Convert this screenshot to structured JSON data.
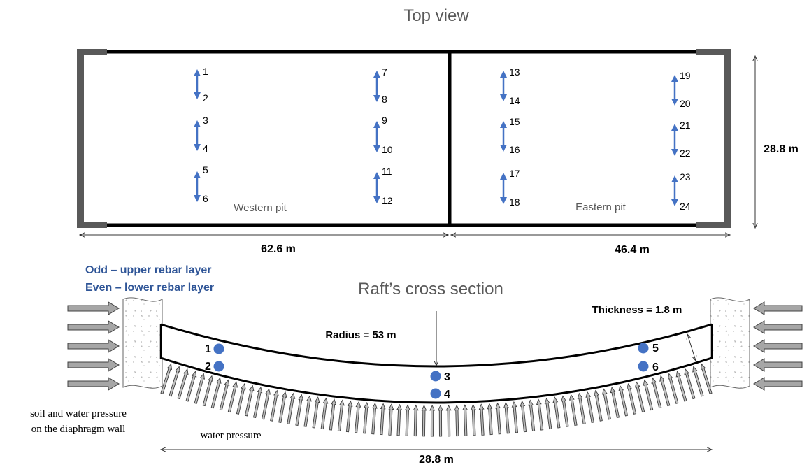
{
  "top_view": {
    "title": "Top view",
    "western_pit_label": "Western pit",
    "eastern_pit_label": "Eastern pit",
    "dim_western_length": "62.6 m",
    "dim_eastern_length": "46.4 m",
    "dim_width": "28.8 m",
    "gauge_labels": [
      "1",
      "2",
      "3",
      "4",
      "5",
      "6",
      "7",
      "8",
      "9",
      "10",
      "11",
      "12",
      "13",
      "14",
      "15",
      "16",
      "17",
      "18",
      "19",
      "20",
      "21",
      "22",
      "23",
      "24"
    ]
  },
  "legend": {
    "odd": "Odd – upper rebar layer",
    "even": "Even – lower rebar layer"
  },
  "cross_section": {
    "title": "Raft’s cross section",
    "radius_label": "Radius = 53 m",
    "thickness_label": "Thickness = 1.8 m",
    "span_label": "28.8 m",
    "soil_note_line1": "soil and water pressure",
    "soil_note_line2": "on the diaphragm wall",
    "water_pressure_label": "water pressure",
    "gauge_labels": [
      "1",
      "2",
      "3",
      "4",
      "5",
      "6"
    ]
  },
  "colors": {
    "gauge_blue": "#4472c4",
    "legend_blue": "#2f5597",
    "wall_gray": "#595959",
    "arrow_gray": "#a6a6a6"
  }
}
